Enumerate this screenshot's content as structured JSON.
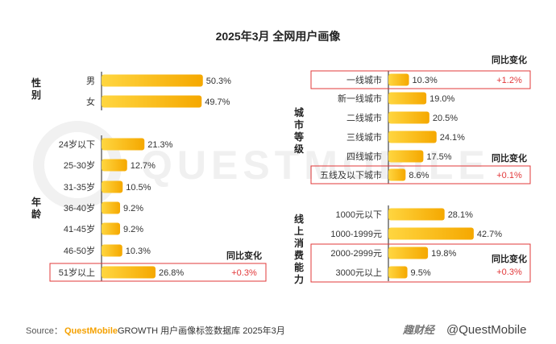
{
  "title": "2025年3月 全网用户画像",
  "change_header": "同比变化",
  "watermark": "QUESTMOBILE",
  "footer": {
    "source_label": "Source：",
    "source_brand": "QuestMobile",
    "source_text": " GROWTH 用户画像标签数据库 2025年3月",
    "credit_logo": "趣财经",
    "credit_handle": "@QuestMobile"
  },
  "colors": {
    "bar_start": "#ffd33a",
    "bar_end": "#f6a800",
    "highlight": "#e2383a",
    "axis": "#222222",
    "text": "#333333"
  },
  "chart_data": [
    {
      "type": "bar",
      "orientation": "horizontal",
      "group": "性别",
      "categories": [
        "男",
        "女"
      ],
      "values": [
        50.3,
        49.7
      ],
      "unit": "%"
    },
    {
      "type": "bar",
      "orientation": "horizontal",
      "group": "年龄",
      "categories": [
        "24岁以下",
        "25-30岁",
        "31-35岁",
        "36-40岁",
        "41-45岁",
        "46-50岁",
        "51岁以上"
      ],
      "values": [
        21.3,
        12.7,
        10.5,
        9.2,
        9.2,
        10.3,
        26.8
      ],
      "unit": "%",
      "highlights": [
        {
          "category": "51岁以上",
          "change": "+0.3%"
        }
      ]
    },
    {
      "type": "bar",
      "orientation": "horizontal",
      "group": "城市等级",
      "categories": [
        "一线城市",
        "新一线城市",
        "二线城市",
        "三线城市",
        "四线城市",
        "五线及以下城市"
      ],
      "values": [
        10.3,
        19.0,
        20.5,
        24.1,
        17.5,
        8.6
      ],
      "unit": "%",
      "highlights": [
        {
          "category": "一线城市",
          "change": "+1.2%"
        },
        {
          "category": "五线及以下城市",
          "change": "+0.1%"
        }
      ]
    },
    {
      "type": "bar",
      "orientation": "horizontal",
      "group": "线上消费能力",
      "categories": [
        "1000元以下",
        "1000-1999元",
        "2000-2999元",
        "3000元以上"
      ],
      "values": [
        28.1,
        42.7,
        19.8,
        9.5
      ],
      "unit": "%",
      "highlights": [
        {
          "category": "2000-2999元 / 3000元以上",
          "change": "+0.3%"
        }
      ]
    }
  ]
}
